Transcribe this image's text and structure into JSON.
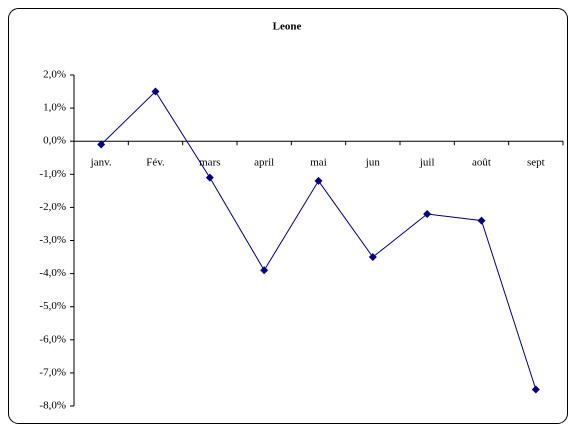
{
  "chart_data": {
    "type": "line",
    "title": "Leone",
    "categories": [
      "janv.",
      "Fév.",
      "mars",
      "april",
      "mai",
      "jun",
      "juil",
      "août",
      "sept"
    ],
    "series": [
      {
        "name": "Leone",
        "color": "#000080",
        "values": [
          -0.1,
          1.5,
          -1.1,
          -3.9,
          -1.2,
          -3.5,
          -2.2,
          -2.4,
          -7.5
        ]
      }
    ],
    "ylim": [
      -8,
      2
    ],
    "yticks": [
      {
        "value": 2,
        "label": "2,0%"
      },
      {
        "value": 1,
        "label": "1,0%"
      },
      {
        "value": 0,
        "label": "0,0%"
      },
      {
        "value": -1,
        "label": "-1,0%"
      },
      {
        "value": -2,
        "label": "-2,0%"
      },
      {
        "value": -3,
        "label": "-3,0%"
      },
      {
        "value": -4,
        "label": "-4,0%"
      },
      {
        "value": -5,
        "label": "-5,0%"
      },
      {
        "value": -6,
        "label": "-6,0%"
      },
      {
        "value": -7,
        "label": "-7,0%"
      },
      {
        "value": -8,
        "label": "-8,0%"
      }
    ],
    "grid": false
  }
}
